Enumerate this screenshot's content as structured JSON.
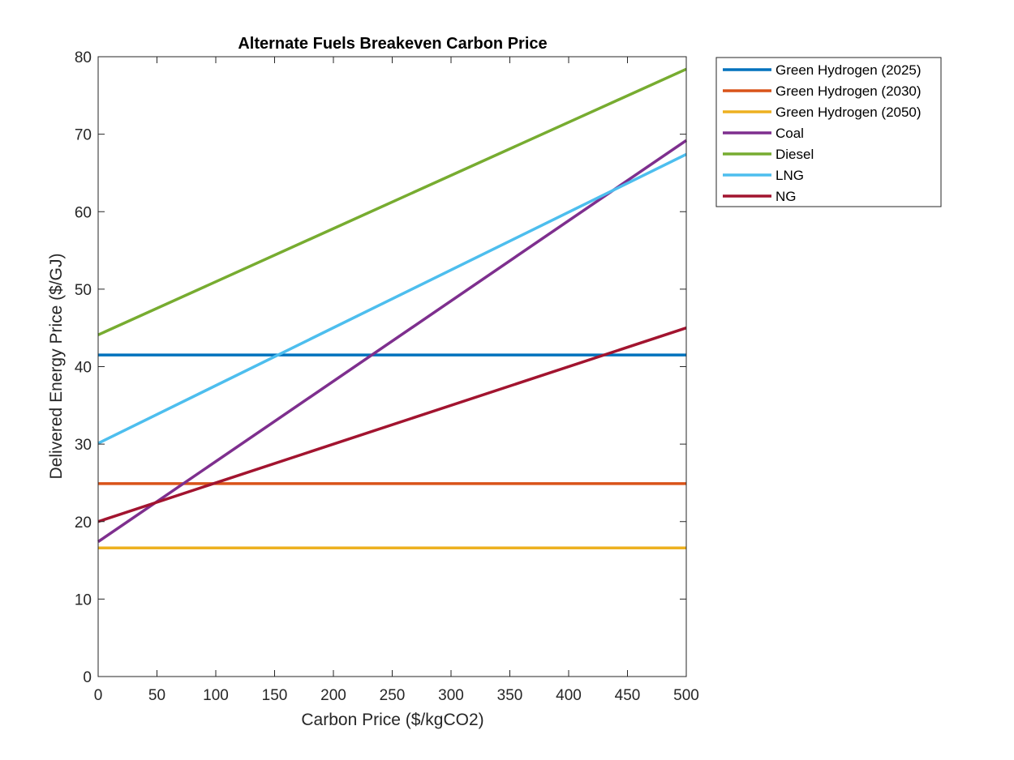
{
  "chart_data": {
    "type": "line",
    "title": "Alternate Fuels Breakeven Carbon Price",
    "xlabel": "Carbon Price ($/kgCO2)",
    "ylabel": "Delivered Energy Price ($/GJ)",
    "xlim": [
      0,
      500
    ],
    "ylim": [
      0,
      80
    ],
    "xticks": [
      0,
      50,
      100,
      150,
      200,
      250,
      300,
      350,
      400,
      450,
      500
    ],
    "yticks": [
      0,
      10,
      20,
      30,
      40,
      50,
      60,
      70,
      80
    ],
    "grid": false,
    "legend_position": "outside-top-right",
    "x": [
      0,
      500
    ],
    "series": [
      {
        "name": "Green Hydrogen (2025)",
        "color": "#0072BD",
        "values": [
          41.5,
          41.5
        ]
      },
      {
        "name": "Green Hydrogen (2030)",
        "color": "#D95319",
        "values": [
          24.9,
          24.9
        ]
      },
      {
        "name": "Green Hydrogen (2050)",
        "color": "#EDB120",
        "values": [
          16.6,
          16.6
        ]
      },
      {
        "name": "Coal",
        "color": "#7E2F8E",
        "values": [
          17.4,
          69.2
        ]
      },
      {
        "name": "Diesel",
        "color": "#77AC30",
        "values": [
          44.1,
          78.4
        ]
      },
      {
        "name": "LNG",
        "color": "#4DBEEE",
        "values": [
          30.1,
          67.4
        ]
      },
      {
        "name": "NG",
        "color": "#A2142F",
        "values": [
          20.0,
          45.0
        ]
      }
    ]
  }
}
